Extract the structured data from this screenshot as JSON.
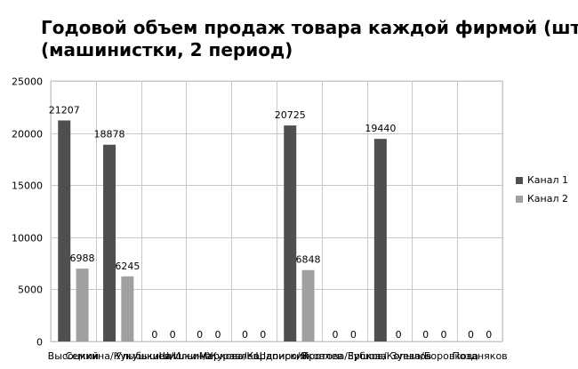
{
  "chart_data": {
    "type": "bar",
    "title_lines": [
      "Годовой объем продаж товара каждой фирмой (шт.)",
      "(машинистки, 2 период)"
    ],
    "categories": [
      "Высоцкий",
      "Семкина/Кукушкина",
      "Улыбышев/Ильина",
      "Шишкин/Журавлев",
      "Маркова/Кордонский",
      "Шапиро/Яковлев",
      "Кротова/Ершова",
      "Зубков/Копылов",
      "Зуева/Боровкова",
      "Поздняков"
    ],
    "series": [
      {
        "name": "Канал 1",
        "color": "#4f4f4f",
        "values": [
          21207,
          18878,
          0,
          0,
          0,
          20725,
          0,
          19440,
          0,
          0
        ]
      },
      {
        "name": "Канал 2",
        "color": "#a0a0a0",
        "values": [
          6988,
          6245,
          0,
          0,
          0,
          6848,
          0,
          0,
          0,
          0
        ]
      }
    ],
    "zero_label_flags": [
      [
        false,
        false,
        true,
        true,
        true,
        false,
        true,
        false,
        true,
        true
      ],
      [
        false,
        false,
        true,
        true,
        true,
        false,
        true,
        true,
        true,
        true
      ]
    ],
    "ylim": [
      0,
      25000
    ],
    "yticks": [
      0,
      5000,
      10000,
      15000,
      20000,
      25000
    ],
    "grid": true,
    "legend_position": "right",
    "xlabel": "",
    "ylabel": ""
  }
}
